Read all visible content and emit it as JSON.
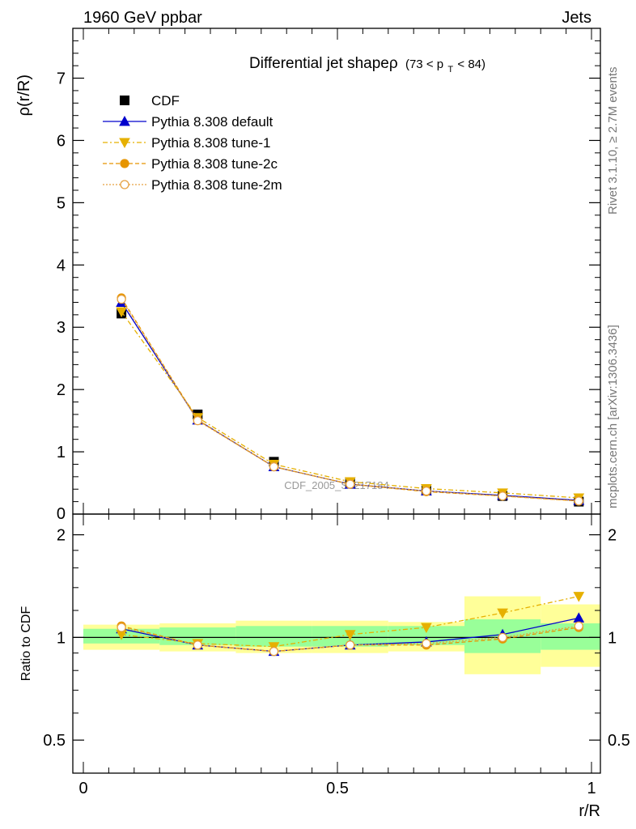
{
  "header": {
    "left": "1960 GeV ppbar",
    "right": "Jets"
  },
  "side_labels": {
    "rivet": "Rivet 3.1.10, ≥ 2.7M events",
    "source": "mcplots.cern.ch [arXiv:1306.3436]"
  },
  "colors": {
    "cdf": "#000000",
    "default": "#0000cc",
    "tune1": "#e6b000",
    "tune2c": "#e69500",
    "tune2m": "#e6a040",
    "band_inner": "#99ff99",
    "band_outer": "#ffff99"
  },
  "chart_data": [
    {
      "type": "line",
      "title": "Differential jet shapeρ",
      "title_range": "(73 < p",
      "title_sub": "T",
      "title_range_end": " < 84)",
      "ylabel": "ρ(r/R)",
      "xlim": [
        0,
        1
      ],
      "ylim": [
        0,
        7.8
      ],
      "yticks": [
        "1",
        "2",
        "3",
        "4",
        "5",
        "6",
        "7"
      ],
      "ytick_zero": "0",
      "watermark": "CDF_2005_S6217184",
      "x": [
        0.075,
        0.225,
        0.375,
        0.525,
        0.675,
        0.825,
        0.975
      ],
      "series": [
        {
          "name": "CDF",
          "values": [
            3.22,
            1.6,
            0.84,
            0.5,
            0.38,
            0.29,
            0.2
          ]
        },
        {
          "name": "Pythia 8.308 default",
          "values": [
            3.4,
            1.51,
            0.76,
            0.48,
            0.37,
            0.3,
            0.22
          ]
        },
        {
          "name": "Pythia 8.308 tune-1",
          "values": [
            3.25,
            1.55,
            0.8,
            0.52,
            0.41,
            0.34,
            0.26
          ]
        },
        {
          "name": "Pythia 8.308 tune-2c",
          "values": [
            3.47,
            1.51,
            0.76,
            0.48,
            0.36,
            0.29,
            0.21
          ]
        },
        {
          "name": "Pythia 8.308 tune-2m",
          "values": [
            3.45,
            1.5,
            0.76,
            0.48,
            0.37,
            0.29,
            0.21
          ]
        }
      ]
    },
    {
      "type": "line",
      "ylabel": "Ratio to CDF",
      "xlabel": "r/R",
      "xlim": [
        0,
        1
      ],
      "ylim": [
        0.4,
        2.3
      ],
      "yscale": "log",
      "yticks": [
        {
          "value": 0.5,
          "label": "0.5"
        },
        {
          "value": 1,
          "label": "1"
        },
        {
          "value": 2,
          "label": "2"
        }
      ],
      "xticks": [
        {
          "value": 0,
          "label": "0"
        },
        {
          "value": 0.5,
          "label": "0.5"
        },
        {
          "value": 1,
          "label": "1"
        }
      ],
      "x": [
        0.075,
        0.225,
        0.375,
        0.525,
        0.675,
        0.825,
        0.975
      ],
      "bins": [
        [
          0,
          0.15
        ],
        [
          0.15,
          0.3
        ],
        [
          0.3,
          0.45
        ],
        [
          0.45,
          0.6
        ],
        [
          0.6,
          0.75
        ],
        [
          0.75,
          0.9
        ],
        [
          0.9,
          1.05
        ]
      ],
      "band_inner": [
        [
          0.96,
          1.06
        ],
        [
          0.95,
          1.07
        ],
        [
          0.94,
          1.08
        ],
        [
          0.94,
          1.08
        ],
        [
          0.95,
          1.08
        ],
        [
          0.9,
          1.13
        ],
        [
          0.92,
          1.1
        ]
      ],
      "band_outer": [
        [
          0.92,
          1.09
        ],
        [
          0.91,
          1.1
        ],
        [
          0.9,
          1.12
        ],
        [
          0.9,
          1.12
        ],
        [
          0.91,
          1.11
        ],
        [
          0.78,
          1.32
        ],
        [
          0.82,
          1.25
        ]
      ],
      "series": [
        {
          "name": "Pythia 8.308 default",
          "values": [
            1.06,
            0.95,
            0.91,
            0.95,
            0.97,
            1.02,
            1.14
          ]
        },
        {
          "name": "Pythia 8.308 tune-1",
          "values": [
            1.02,
            0.96,
            0.94,
            1.02,
            1.07,
            1.18,
            1.32
          ]
        },
        {
          "name": "Pythia 8.308 tune-2c",
          "values": [
            1.08,
            0.95,
            0.91,
            0.95,
            0.95,
            0.99,
            1.07
          ]
        },
        {
          "name": "Pythia 8.308 tune-2m",
          "values": [
            1.07,
            0.95,
            0.91,
            0.95,
            0.96,
            1.0,
            1.08
          ]
        }
      ]
    }
  ]
}
